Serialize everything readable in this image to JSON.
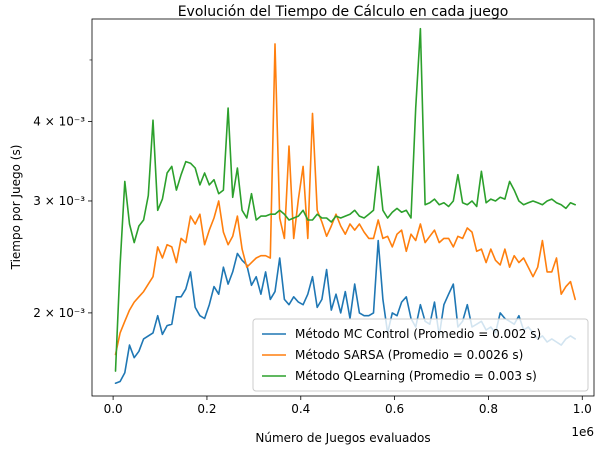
{
  "chart_data": {
    "type": "line",
    "title": "Evolución del Tiempo de Cálculo en cada juego",
    "xlabel": "Número de Juegos evaluados",
    "ylabel": "Tiempo por Juego (s)",
    "x_offset_label": "1e6",
    "xlim": [
      -45000,
      1025000
    ],
    "ylim": [
      0.00148,
      0.0058
    ],
    "yscale": "log",
    "x_ticks": [
      0,
      200000,
      400000,
      600000,
      800000,
      1000000
    ],
    "x_tick_labels": [
      "0.0",
      "0.2",
      "0.4",
      "0.6",
      "0.8",
      "1.0"
    ],
    "y_major_ticks": [
      0.002,
      0.003,
      0.004
    ],
    "y_major_labels": [
      "2 × 10⁻³",
      "3 × 10⁻³",
      "4 × 10⁻³"
    ],
    "y_minor_ticks": [
      0.005
    ],
    "grid": false,
    "legend_position": "lower right",
    "x": [
      5000,
      15000,
      25000,
      35000,
      45000,
      55000,
      65000,
      75000,
      85000,
      95000,
      105000,
      115000,
      125000,
      135000,
      145000,
      155000,
      165000,
      175000,
      185000,
      195000,
      205000,
      215000,
      225000,
      235000,
      245000,
      255000,
      265000,
      275000,
      285000,
      295000,
      305000,
      315000,
      325000,
      335000,
      345000,
      355000,
      365000,
      375000,
      385000,
      395000,
      405000,
      415000,
      425000,
      435000,
      445000,
      455000,
      465000,
      475000,
      485000,
      495000,
      505000,
      515000,
      525000,
      535000,
      545000,
      555000,
      565000,
      575000,
      585000,
      595000,
      605000,
      615000,
      625000,
      635000,
      645000,
      655000,
      665000,
      675000,
      685000,
      695000,
      705000,
      715000,
      725000,
      735000,
      745000,
      755000,
      765000,
      775000,
      785000,
      795000,
      805000,
      815000,
      825000,
      835000,
      845000,
      855000,
      865000,
      875000,
      885000,
      895000,
      905000,
      915000,
      925000,
      935000,
      945000,
      955000,
      965000,
      975000,
      985000
    ],
    "series": [
      {
        "name": "Método MC Control (Promedio = 0.002 s)",
        "color": "#1f77b4",
        "values": [
          0.00155,
          0.00156,
          0.00161,
          0.00178,
          0.0017,
          0.00174,
          0.00182,
          0.00184,
          0.00186,
          0.00198,
          0.00185,
          0.00191,
          0.00192,
          0.00212,
          0.00212,
          0.00218,
          0.00232,
          0.00204,
          0.00198,
          0.00196,
          0.00206,
          0.0022,
          0.00214,
          0.00236,
          0.00222,
          0.00232,
          0.00248,
          0.00242,
          0.00238,
          0.00221,
          0.00228,
          0.00214,
          0.00232,
          0.0021,
          0.00216,
          0.00244,
          0.0021,
          0.00206,
          0.00212,
          0.00208,
          0.00206,
          0.00214,
          0.00228,
          0.00204,
          0.0021,
          0.00234,
          0.00202,
          0.00214,
          0.002,
          0.00216,
          0.00196,
          0.00222,
          0.002,
          0.00198,
          0.00198,
          0.002,
          0.0026,
          0.0021,
          0.00186,
          0.002,
          0.00198,
          0.00208,
          0.00212,
          0.00196,
          0.0019,
          0.00206,
          0.00194,
          0.00192,
          0.00208,
          0.00184,
          0.00206,
          0.00214,
          0.00222,
          0.0019,
          0.00194,
          0.00206,
          0.0019,
          0.00192,
          0.00194,
          0.00188,
          0.0019,
          0.00186,
          0.002,
          0.00196,
          0.00194,
          0.00192,
          0.00198,
          0.00188,
          0.0019,
          0.00186,
          0.00182,
          0.00184,
          0.0018,
          0.00182,
          0.0018,
          0.00178,
          0.00182,
          0.00184,
          0.00182
        ]
      },
      {
        "name": "Método SARSA (Promedio = 0.0026 s)",
        "color": "#ff7f0e",
        "values": [
          0.00172,
          0.00186,
          0.00194,
          0.00202,
          0.00208,
          0.00212,
          0.00216,
          0.00222,
          0.00228,
          0.00254,
          0.00244,
          0.00256,
          0.00254,
          0.0024,
          0.00262,
          0.00258,
          0.00284,
          0.00276,
          0.00286,
          0.00256,
          0.0027,
          0.00282,
          0.003,
          0.00268,
          0.00256,
          0.00264,
          0.00284,
          0.00252,
          0.00236,
          0.0024,
          0.00244,
          0.00246,
          0.00246,
          0.00244,
          0.0053,
          0.00282,
          0.00262,
          0.00366,
          0.00262,
          0.00302,
          0.0034,
          0.00262,
          0.00412,
          0.0029,
          0.00278,
          0.00264,
          0.00274,
          0.00286,
          0.00274,
          0.00266,
          0.00276,
          0.0027,
          0.00276,
          0.00268,
          0.00262,
          0.00262,
          0.0028,
          0.00262,
          0.00264,
          0.00254,
          0.00266,
          0.0027,
          0.0025,
          0.00266,
          0.0026,
          0.00276,
          0.00258,
          0.00264,
          0.0027,
          0.00258,
          0.00262,
          0.00262,
          0.00254,
          0.00264,
          0.00262,
          0.00272,
          0.00268,
          0.0025,
          0.00252,
          0.0024,
          0.00252,
          0.00242,
          0.00238,
          0.00252,
          0.00236,
          0.00246,
          0.0024,
          0.00244,
          0.00236,
          0.00228,
          0.00236,
          0.0026,
          0.00232,
          0.00232,
          0.00244,
          0.00214,
          0.0022,
          0.00224,
          0.0021
        ]
      },
      {
        "name": "Método QLearning (Promedio = 0.003 s)",
        "color": "#2ca02c",
        "values": [
          0.00162,
          0.00238,
          0.00322,
          0.00276,
          0.00258,
          0.00274,
          0.0028,
          0.00306,
          0.00402,
          0.0029,
          0.00302,
          0.00332,
          0.0034,
          0.00312,
          0.0033,
          0.00346,
          0.00344,
          0.00338,
          0.00318,
          0.00332,
          0.00318,
          0.00324,
          0.00308,
          0.00312,
          0.0042,
          0.00304,
          0.00338,
          0.0029,
          0.00282,
          0.00308,
          0.0028,
          0.00284,
          0.00284,
          0.00286,
          0.00286,
          0.0029,
          0.00286,
          0.0028,
          0.00282,
          0.00284,
          0.0029,
          0.0028,
          0.0028,
          0.00286,
          0.00282,
          0.00282,
          0.00278,
          0.00284,
          0.00282,
          0.00284,
          0.00286,
          0.0029,
          0.00284,
          0.00282,
          0.00286,
          0.0029,
          0.0034,
          0.0029,
          0.00282,
          0.00288,
          0.00292,
          0.00288,
          0.0029,
          0.00282,
          0.0042,
          0.0056,
          0.00296,
          0.00298,
          0.00302,
          0.00296,
          0.00298,
          0.00294,
          0.003,
          0.0033,
          0.00298,
          0.00296,
          0.003,
          0.00294,
          0.00334,
          0.00298,
          0.00302,
          0.003,
          0.00304,
          0.00302,
          0.00322,
          0.00312,
          0.003,
          0.00296,
          0.00298,
          0.003,
          0.00298,
          0.00296,
          0.003,
          0.00302,
          0.00298,
          0.00296,
          0.00292,
          0.00298,
          0.00296
        ]
      }
    ]
  }
}
